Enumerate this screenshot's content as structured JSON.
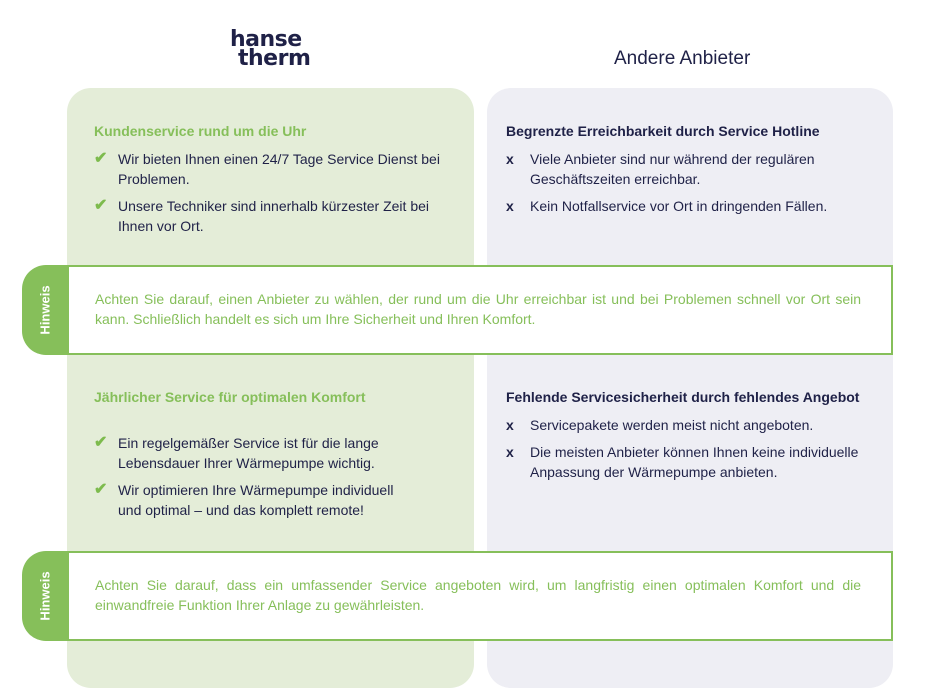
{
  "logo": {
    "line1": "hanse",
    "line2": "therm"
  },
  "other_title": "Andere Anbieter",
  "colors": {
    "green": "#86bf5a",
    "green_bg": "#e4edd8",
    "grey_bg": "#eeeef4",
    "navy": "#1f2147"
  },
  "left": [
    {
      "title": "Kundenservice rund um die Uhr",
      "items": [
        "Wir bieten Ihnen einen 24/7 Tage Service Dienst bei Problemen.",
        "Unsere Techniker sind innerhalb kürzester Zeit bei Ihnen vor Ort."
      ]
    },
    {
      "title": "Jährlicher Service für optimalen Komfort",
      "items": [
        "Ein regelgemäßer Service ist für die lange Lebensdauer Ihrer Wärmepumpe wichtig.",
        "Wir optimieren Ihre Wärmepumpe individuell und optimal – und das komplett remote!"
      ]
    }
  ],
  "right": [
    {
      "title": "Begrenzte Erreichbarkeit durch Service Hotline",
      "items": [
        "Viele Anbieter sind nur während der regulären Geschäftszeiten erreichbar.",
        "Kein Notfallservice vor Ort in dringenden Fällen."
      ]
    },
    {
      "title": "Fehlende Servicesicherheit durch fehlendes Angebot",
      "items": [
        "Servicepakete werden meist nicht angeboten.",
        "Die meisten Anbieter können Ihnen keine individuelle Anpassung der Wärmepumpe anbieten."
      ]
    }
  ],
  "icons": {
    "check": "✔",
    "cross": "x"
  },
  "hints": [
    {
      "label": "Hinweis",
      "text": "Achten Sie darauf, einen Anbieter zu wählen, der rund um die Uhr erreichbar ist und bei Problemen schnell vor Ort sein kann. Schließlich handelt es sich um Ihre Sicherheit und Ihren Komfort."
    },
    {
      "label": "Hinweis",
      "text": "Achten Sie darauf, dass ein umfassender Service angeboten wird, um langfristig einen optimalen Komfort und die einwandfreie Funktion Ihrer Anlage zu gewährleisten."
    }
  ]
}
